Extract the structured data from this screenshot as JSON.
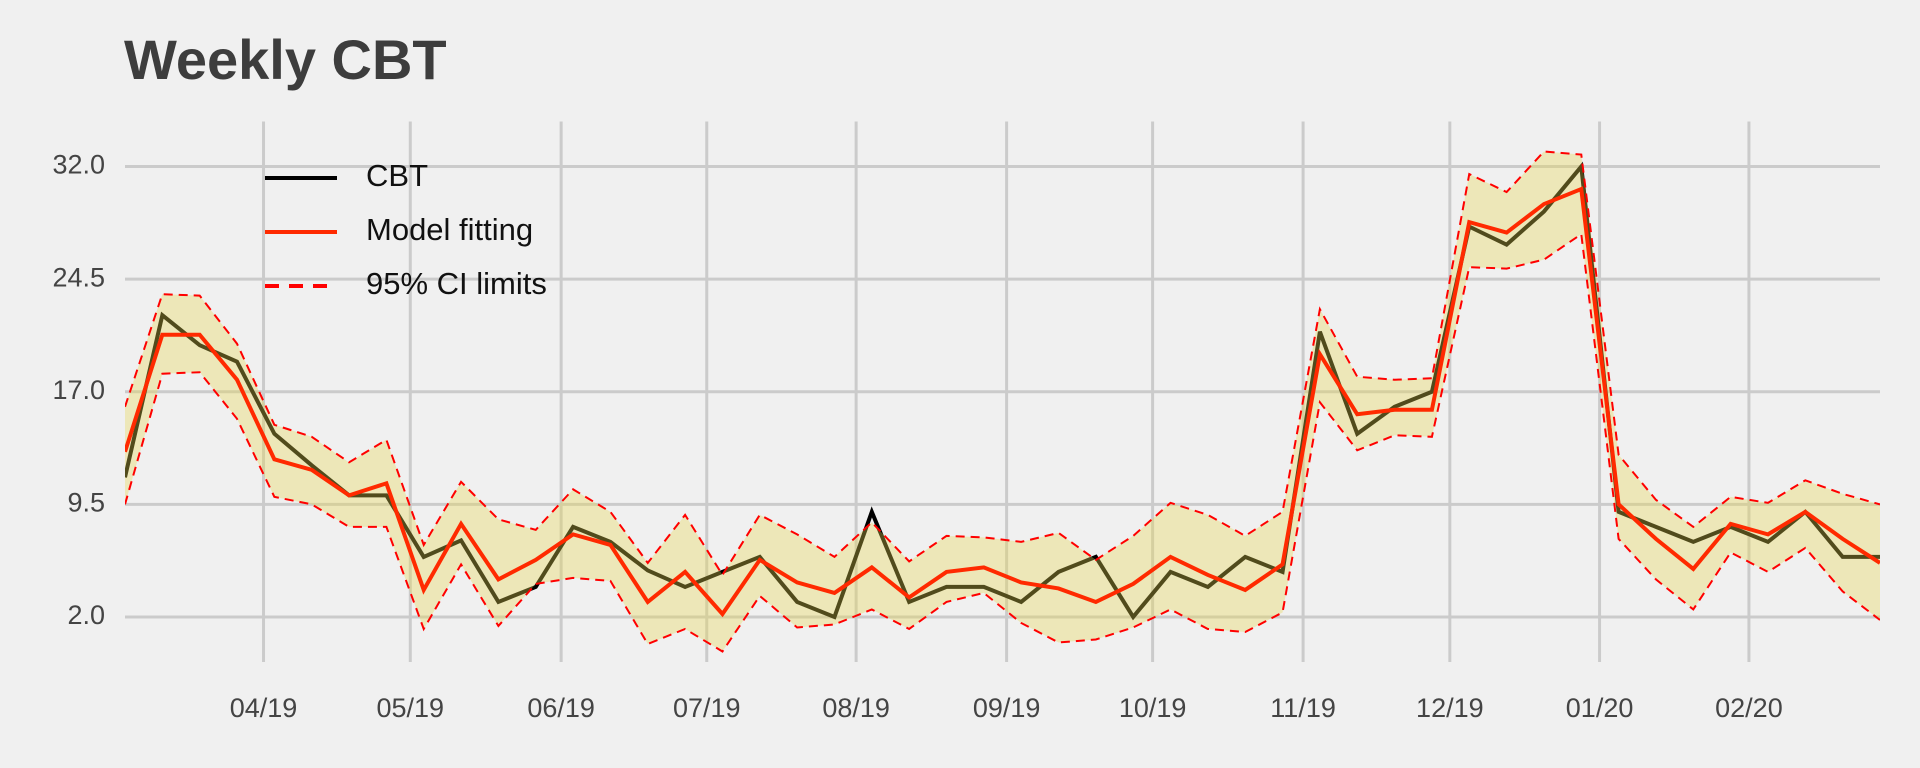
{
  "chart_data": {
    "type": "line",
    "title": "Weekly CBT",
    "xlim": [
      0,
      47
    ],
    "xticks": [
      {
        "value": 3.71,
        "label": "04/19"
      },
      {
        "value": 7.64,
        "label": "05/19"
      },
      {
        "value": 11.68,
        "label": "06/19"
      },
      {
        "value": 15.58,
        "label": "07/19"
      },
      {
        "value": 19.58,
        "label": "08/19"
      },
      {
        "value": 23.61,
        "label": "09/19"
      },
      {
        "value": 27.52,
        "label": "10/19"
      },
      {
        "value": 31.55,
        "label": "11/19"
      },
      {
        "value": 35.48,
        "label": "12/19"
      },
      {
        "value": 39.49,
        "label": "01/20"
      },
      {
        "value": 43.49,
        "label": "02/20"
      }
    ],
    "ylim": [
      -1,
      35
    ],
    "yticks": [
      {
        "value": 2,
        "label": "2.0"
      },
      {
        "value": 9.5,
        "label": "9.5"
      },
      {
        "value": 17,
        "label": "17.0"
      },
      {
        "value": 24.5,
        "label": "24.5"
      },
      {
        "value": 32,
        "label": "32.0"
      }
    ],
    "grid": true,
    "legend": "upper left",
    "series": [
      {
        "name": "CBT",
        "color": "#000000",
        "values": [
          11.3,
          22.1,
          20.1,
          19.0,
          14.2,
          12.1,
          10.1,
          10.1,
          6.0,
          7.1,
          3.0,
          4.0,
          8.0,
          7.0,
          5.1,
          4.0,
          5.0,
          6.0,
          3.0,
          2.0,
          9.0,
          3.0,
          4.0,
          4.0,
          3.0,
          5.0,
          6.0,
          2.0,
          5.0,
          4.0,
          6.0,
          5.0,
          21.0,
          14.2,
          16.0,
          17.0,
          28.0,
          26.8,
          29.0,
          32.0,
          9.0,
          8.0,
          7.0,
          8.0,
          7.0,
          9.0,
          6.0,
          6.0
        ]
      },
      {
        "name": "Model fitting",
        "color": "#ff2a00",
        "values": [
          13.0,
          20.8,
          20.8,
          17.8,
          12.5,
          11.8,
          10.1,
          10.9,
          3.8,
          8.2,
          4.5,
          5.8,
          7.5,
          6.8,
          3.0,
          5.0,
          2.2,
          5.8,
          4.3,
          3.6,
          5.3,
          3.3,
          5.0,
          5.3,
          4.3,
          3.9,
          3.0,
          4.2,
          6.0,
          4.8,
          3.8,
          5.5,
          19.5,
          15.5,
          15.8,
          15.8,
          28.3,
          27.6,
          29.5,
          30.5,
          9.5,
          7.2,
          5.2,
          8.2,
          7.5,
          9.0,
          7.2,
          5.6
        ]
      }
    ],
    "band": {
      "name": "95% CI limits",
      "color": "#ff0000",
      "fill": "#e9d64f",
      "upper": [
        16.0,
        23.5,
        23.4,
        20.2,
        14.8,
        14.0,
        12.3,
        13.8,
        6.8,
        11.0,
        8.5,
        7.8,
        10.5,
        9.0,
        5.6,
        8.8,
        4.8,
        8.8,
        7.5,
        6.0,
        8.3,
        5.7,
        7.4,
        7.3,
        7.0,
        7.6,
        5.8,
        7.4,
        9.6,
        8.8,
        7.4,
        9.0,
        22.5,
        18.0,
        17.8,
        17.9,
        31.5,
        30.3,
        33.0,
        32.8,
        12.8,
        9.8,
        8.0,
        10.0,
        9.6,
        11.1,
        10.2,
        9.5
      ],
      "lower": [
        9.5,
        18.2,
        18.3,
        15.2,
        10.0,
        9.5,
        8.0,
        8.0,
        1.2,
        5.5,
        1.4,
        4.2,
        4.6,
        4.4,
        0.2,
        1.2,
        -0.3,
        3.4,
        1.3,
        1.5,
        2.5,
        1.2,
        3.0,
        3.6,
        1.6,
        0.3,
        0.5,
        1.3,
        2.5,
        1.2,
        1.0,
        2.3,
        16.3,
        13.1,
        14.1,
        14.0,
        25.3,
        25.2,
        25.8,
        27.5,
        7.2,
        4.5,
        2.5,
        6.3,
        5.0,
        6.6,
        3.7,
        1.8
      ]
    }
  }
}
